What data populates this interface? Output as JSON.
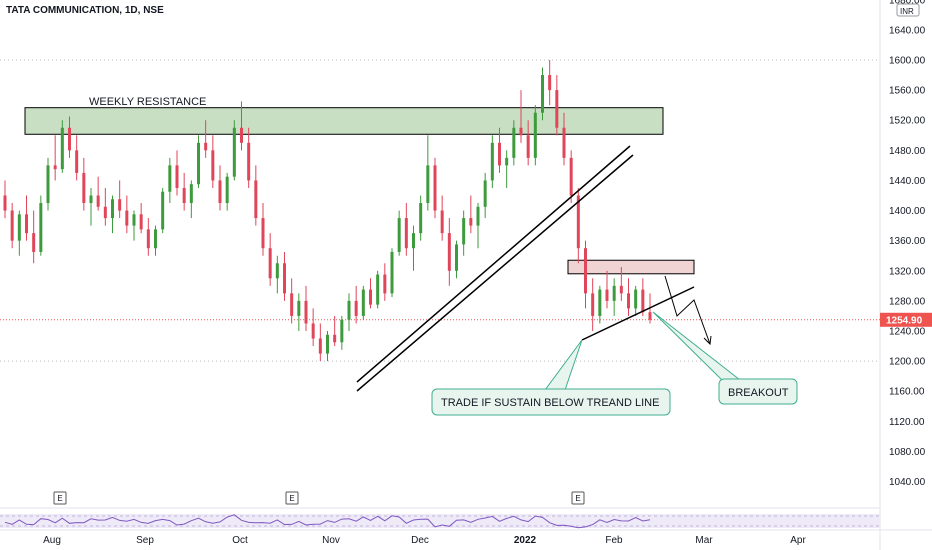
{
  "header": {
    "title": "TATA COMMUNICATION, 1D, NSE",
    "currency": "INR"
  },
  "colors": {
    "up": "#26a69a",
    "up_candle": "#3d9a3d",
    "down": "#e0455a",
    "resistance_fill": "#c9dfc4",
    "supply_fill": "#f0d4d4",
    "callout_fill": "#e8f5ef",
    "callout_stroke": "#3fae8f",
    "price_line": "#ef5350",
    "grid_dotted": "#d66",
    "rsi_band": "#efeaf8",
    "rsi_line": "#7e57c2"
  },
  "annotations": {
    "resistance_label": "WEEKLY RESISTANCE",
    "callout_trade": "TRADE IF SUSTAIN BELOW TREAND LINE",
    "callout_breakout": "BREAKOUT",
    "earnings_marker": "E"
  },
  "price_badge": "1254.90",
  "chart_data": {
    "type": "candlestick",
    "title": "TATA COMMUNICATION, 1D, NSE",
    "ylabel": "INR",
    "ylim": [
      1000,
      1680
    ],
    "y_ticks": [
      1680,
      1640,
      1600,
      1560,
      1520,
      1480,
      1440,
      1400,
      1360,
      1320,
      1280,
      1240,
      1200,
      1160,
      1120,
      1080,
      1040
    ],
    "x_ticks": [
      "Aug",
      "Sep",
      "Oct",
      "Nov",
      "Dec",
      "2022",
      "Feb",
      "Mar",
      "Apr"
    ],
    "last_price": 1254.9,
    "weekly_resistance": [
      1500,
      1530
    ],
    "supply_zone": [
      1316,
      1334
    ],
    "horizontal_levels": [
      1600,
      1200,
      1254.9
    ],
    "earnings_markers": [
      "Aug",
      "Oct",
      "2022"
    ],
    "rising_channel": {
      "from_approx": 1170,
      "to_approx": 1490
    },
    "series": [
      {
        "values": [
          [
            1420,
            1440,
            1390,
            1400
          ],
          [
            1400,
            1410,
            1350,
            1360
          ],
          [
            1360,
            1400,
            1340,
            1395
          ],
          [
            1395,
            1420,
            1360,
            1370
          ],
          [
            1370,
            1400,
            1330,
            1345
          ],
          [
            1345,
            1420,
            1340,
            1410
          ],
          [
            1410,
            1470,
            1400,
            1460
          ],
          [
            1460,
            1500,
            1440,
            1455
          ],
          [
            1455,
            1520,
            1450,
            1510
          ],
          [
            1510,
            1525,
            1470,
            1480
          ],
          [
            1480,
            1500,
            1440,
            1450
          ],
          [
            1450,
            1470,
            1400,
            1410
          ],
          [
            1410,
            1430,
            1380,
            1420
          ],
          [
            1420,
            1445,
            1400,
            1405
          ],
          [
            1405,
            1430,
            1380,
            1390
          ],
          [
            1390,
            1420,
            1370,
            1415
          ],
          [
            1415,
            1440,
            1390,
            1400
          ],
          [
            1400,
            1420,
            1370,
            1380
          ],
          [
            1380,
            1400,
            1360,
            1395
          ],
          [
            1395,
            1410,
            1370,
            1375
          ],
          [
            1375,
            1390,
            1340,
            1350
          ],
          [
            1350,
            1380,
            1340,
            1375
          ],
          [
            1375,
            1430,
            1370,
            1425
          ],
          [
            1425,
            1470,
            1410,
            1460
          ],
          [
            1460,
            1480,
            1420,
            1430
          ],
          [
            1430,
            1450,
            1400,
            1410
          ],
          [
            1410,
            1440,
            1390,
            1435
          ],
          [
            1435,
            1500,
            1430,
            1490
          ],
          [
            1490,
            1520,
            1470,
            1480
          ],
          [
            1480,
            1500,
            1430,
            1440
          ],
          [
            1440,
            1460,
            1400,
            1410
          ],
          [
            1410,
            1450,
            1400,
            1445
          ],
          [
            1445,
            1520,
            1440,
            1510
          ],
          [
            1510,
            1545,
            1480,
            1490
          ],
          [
            1490,
            1510,
            1430,
            1440
          ],
          [
            1440,
            1460,
            1380,
            1390
          ],
          [
            1390,
            1410,
            1340,
            1350
          ],
          [
            1350,
            1370,
            1300,
            1310
          ],
          [
            1310,
            1340,
            1290,
            1330
          ],
          [
            1330,
            1345,
            1280,
            1290
          ],
          [
            1290,
            1310,
            1250,
            1260
          ],
          [
            1260,
            1290,
            1240,
            1280
          ],
          [
            1280,
            1300,
            1240,
            1250
          ],
          [
            1250,
            1270,
            1220,
            1230
          ],
          [
            1230,
            1250,
            1200,
            1210
          ],
          [
            1210,
            1240,
            1200,
            1235
          ],
          [
            1235,
            1260,
            1220,
            1225
          ],
          [
            1225,
            1260,
            1215,
            1255
          ],
          [
            1255,
            1290,
            1240,
            1280
          ],
          [
            1280,
            1300,
            1250,
            1260
          ],
          [
            1260,
            1300,
            1255,
            1295
          ],
          [
            1295,
            1310,
            1270,
            1275
          ],
          [
            1275,
            1320,
            1270,
            1315
          ],
          [
            1315,
            1330,
            1280,
            1290
          ],
          [
            1290,
            1350,
            1285,
            1345
          ],
          [
            1345,
            1400,
            1340,
            1390
          ],
          [
            1390,
            1410,
            1340,
            1350
          ],
          [
            1350,
            1380,
            1320,
            1370
          ],
          [
            1370,
            1420,
            1360,
            1410
          ],
          [
            1410,
            1500,
            1400,
            1460
          ],
          [
            1460,
            1470,
            1390,
            1400
          ],
          [
            1400,
            1420,
            1360,
            1370
          ],
          [
            1370,
            1390,
            1300,
            1320
          ],
          [
            1320,
            1360,
            1310,
            1355
          ],
          [
            1355,
            1400,
            1340,
            1390
          ],
          [
            1390,
            1420,
            1370,
            1380
          ],
          [
            1380,
            1410,
            1350,
            1405
          ],
          [
            1405,
            1450,
            1390,
            1440
          ],
          [
            1440,
            1500,
            1430,
            1490
          ],
          [
            1490,
            1510,
            1450,
            1460
          ],
          [
            1460,
            1480,
            1430,
            1470
          ],
          [
            1470,
            1520,
            1460,
            1510
          ],
          [
            1510,
            1560,
            1490,
            1500
          ],
          [
            1500,
            1520,
            1460,
            1470
          ],
          [
            1470,
            1540,
            1460,
            1530
          ],
          [
            1530,
            1590,
            1520,
            1580
          ],
          [
            1580,
            1600,
            1540,
            1560
          ],
          [
            1560,
            1580,
            1500,
            1510
          ],
          [
            1510,
            1530,
            1460,
            1470
          ],
          [
            1470,
            1480,
            1410,
            1420
          ],
          [
            1420,
            1430,
            1330,
            1350
          ],
          [
            1350,
            1360,
            1270,
            1290
          ],
          [
            1290,
            1310,
            1240,
            1260
          ],
          [
            1260,
            1300,
            1250,
            1295
          ],
          [
            1295,
            1320,
            1270,
            1280
          ],
          [
            1280,
            1310,
            1260,
            1300
          ],
          [
            1300,
            1325,
            1280,
            1290
          ],
          [
            1290,
            1310,
            1260,
            1270
          ],
          [
            1270,
            1300,
            1260,
            1295
          ],
          [
            1295,
            1310,
            1260,
            1265
          ],
          [
            1265,
            1290,
            1250,
            1254.9
          ]
        ]
      }
    ]
  }
}
